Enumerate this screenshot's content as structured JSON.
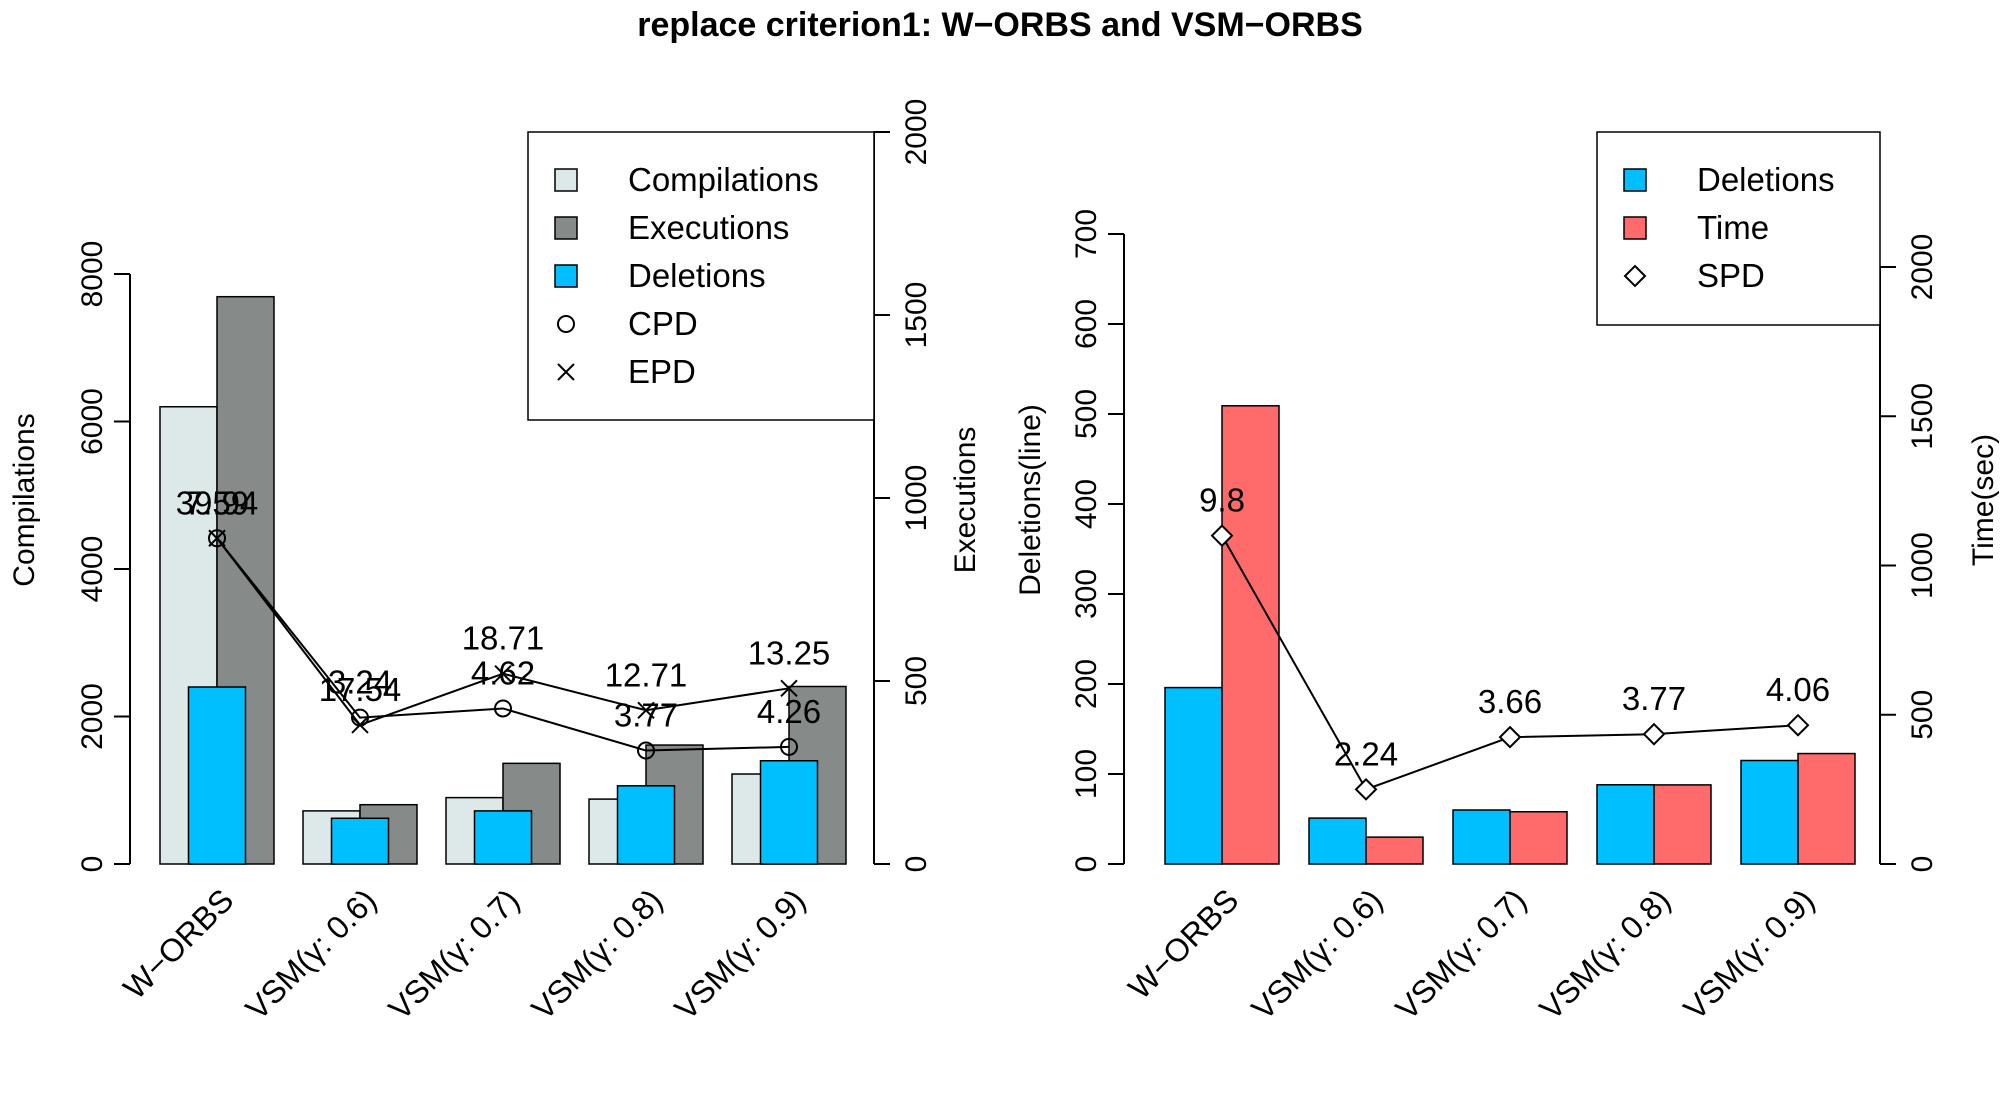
{
  "title": "replace criterion1: W−ORBS and VSM−ORBS",
  "colors": {
    "compilations": "#DDE8E8",
    "executions": "#868A89",
    "deletions": "#00BFFF",
    "time": "#FF6A6A",
    "line": "#000000"
  },
  "chart_data": [
    {
      "type": "bar",
      "categories": [
        "W−ORBS",
        "VSM(γ: 0.6)",
        "VSM(γ: 0.7)",
        "VSM(γ: 0.8)",
        "VSM(γ: 0.9)"
      ],
      "ylabel": "Compilations",
      "ylim": [
        0,
        8000
      ],
      "yticks": [
        "0",
        "2000",
        "4000",
        "6000",
        "8000"
      ],
      "y2label": "Executions",
      "y2lim": [
        0,
        2000
      ],
      "y2ticks": [
        "0",
        "500",
        "1000",
        "1500",
        "2000"
      ],
      "series": [
        {
          "name": "Compilations",
          "axis": "left",
          "values": [
            6200,
            720,
            900,
            880,
            1220
          ]
        },
        {
          "name": "Executions",
          "axis": "right",
          "values": [
            1550,
            162,
            275,
            325,
            485
          ]
        },
        {
          "name": "Deletions",
          "axis": "left",
          "values": [
            2400,
            620,
            720,
            1060,
            1400
          ]
        }
      ],
      "lines": [
        {
          "name": "CPD",
          "marker": "circle",
          "axis": "right",
          "values": [
            890,
            400,
            425,
            310,
            320
          ],
          "labels": [
            "7.59",
            "3.24",
            "4.62",
            "3.77",
            "4.26"
          ]
        },
        {
          "name": "EPD",
          "marker": "cross",
          "axis": "right",
          "values": [
            890,
            380,
            520,
            420,
            480
          ],
          "labels": [
            "39.94",
            "17.54",
            "18.71",
            "12.71",
            "13.25"
          ]
        }
      ],
      "legend": [
        "Compilations",
        "Executions",
        "Deletions",
        "CPD",
        "EPD"
      ],
      "legend_position": "top-right"
    },
    {
      "type": "bar",
      "categories": [
        "W−ORBS",
        "VSM(γ: 0.6)",
        "VSM(γ: 0.7)",
        "VSM(γ: 0.8)",
        "VSM(γ: 0.9)"
      ],
      "ylabel": "Deletions(line)",
      "ylim": [
        0,
        700
      ],
      "yticks": [
        "0",
        "100",
        "200",
        "300",
        "400",
        "500",
        "600",
        "700"
      ],
      "y2label": "Time(sec)",
      "y2lim": [
        0,
        2000
      ],
      "y2ticks": [
        "0",
        "500",
        "1000",
        "1500",
        "2000"
      ],
      "series": [
        {
          "name": "Deletions",
          "axis": "left",
          "values": [
            196,
            51,
            60,
            88,
            115
          ]
        },
        {
          "name": "Time",
          "axis": "right",
          "values": [
            1535,
            90,
            175,
            265,
            370
          ]
        }
      ],
      "lines": [
        {
          "name": "SPD",
          "marker": "diamond",
          "axis": "right",
          "values": [
            1100,
            250,
            425,
            435,
            465
          ],
          "labels": [
            "9.8",
            "2.24",
            "3.66",
            "3.77",
            "4.06"
          ]
        }
      ],
      "legend": [
        "Deletions",
        "Time",
        "SPD"
      ],
      "legend_position": "top-right"
    }
  ]
}
